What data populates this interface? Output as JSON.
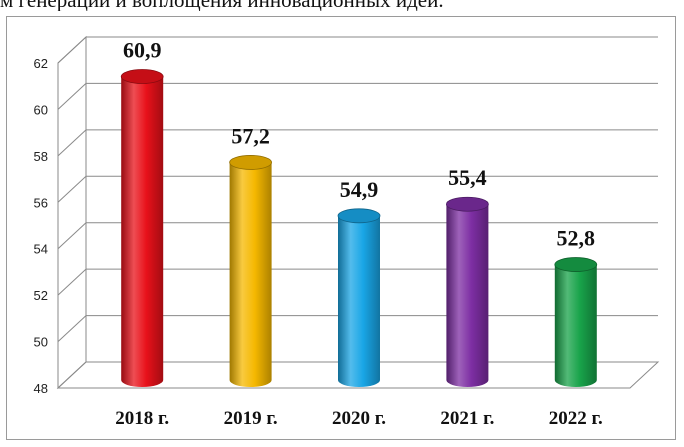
{
  "top_text": "м генерации и воплощения инновационных идей.",
  "chart_data": {
    "type": "bar",
    "style": "3d-cylinder",
    "categories": [
      "2018 г.",
      "2019 г.",
      "2020 г.",
      "2021 г.",
      "2022 г."
    ],
    "values": [
      60.9,
      57.2,
      54.9,
      55.4,
      52.8
    ],
    "data_labels": [
      "60,9",
      "57,2",
      "54,9",
      "55,4",
      "52,8"
    ],
    "colors": [
      "#e8111a",
      "#f5b800",
      "#19a6e6",
      "#7d2ea3",
      "#18a34a"
    ],
    "title": "",
    "xlabel": "",
    "ylabel": "",
    "ylim": [
      48,
      62
    ],
    "yticks": [
      48,
      50,
      52,
      54,
      56,
      58,
      60,
      62
    ],
    "ytick_labels": [
      "48",
      "50",
      "52",
      "54",
      "56",
      "58",
      "60",
      "62"
    ],
    "grid": true,
    "legend": "none"
  }
}
